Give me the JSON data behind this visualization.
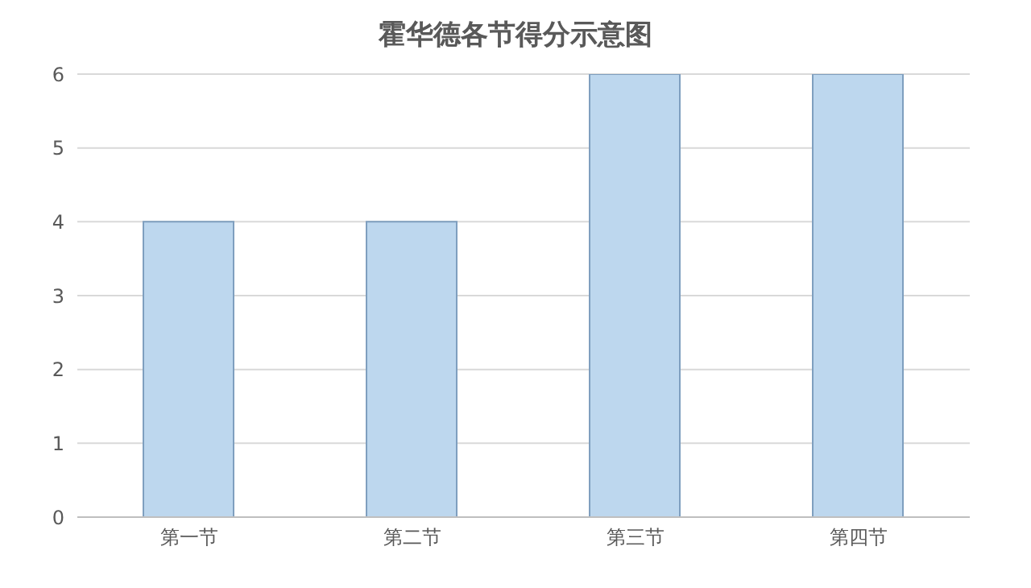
{
  "chart_data": {
    "type": "bar",
    "title": "霍华德各节得分示意图",
    "categories": [
      "第一节",
      "第二节",
      "第三节",
      "第四节"
    ],
    "values": [
      4,
      4,
      6,
      6
    ],
    "color": "#bdd7ee",
    "ylim": [
      0,
      6
    ],
    "yticks": [
      0,
      1,
      2,
      3,
      4,
      5,
      6
    ],
    "grid": "y"
  }
}
